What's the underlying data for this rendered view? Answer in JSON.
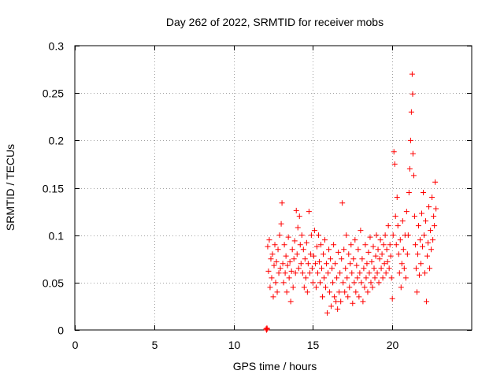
{
  "chart_data": {
    "type": "scatter",
    "title": "Day 262 of 2022, SRMTID for receiver mobs",
    "xlabel": "GPS time / hours",
    "ylabel": "SRMTID / TECUs",
    "xlim": [
      0,
      25
    ],
    "ylim": [
      0,
      0.3
    ],
    "xticks": [
      0,
      5,
      10,
      15,
      20
    ],
    "yticks": [
      0,
      0.05,
      0.1,
      0.15,
      0.2,
      0.25,
      0.3
    ],
    "xtick_labels": [
      "0",
      "5",
      "10",
      "15",
      "20"
    ],
    "ytick_labels": [
      "0",
      "0.05",
      "0.1",
      "0.15",
      "0.2",
      "0.25",
      "0.3"
    ],
    "grid": true,
    "marker": "+",
    "marker_color": "#ff0000",
    "series": [
      {
        "name": "SRMTID",
        "points": [
          [
            12.05,
            0.001
          ],
          [
            12.08,
            0.0
          ],
          [
            12.1,
            0.002
          ],
          [
            12.12,
            0.001
          ],
          [
            12.15,
            0.088
          ],
          [
            12.2,
            0.062
          ],
          [
            12.25,
            0.095
          ],
          [
            12.3,
            0.045
          ],
          [
            12.35,
            0.075
          ],
          [
            12.4,
            0.055
          ],
          [
            12.45,
            0.08
          ],
          [
            12.5,
            0.035
          ],
          [
            12.55,
            0.068
          ],
          [
            12.6,
            0.09
          ],
          [
            12.65,
            0.05
          ],
          [
            12.7,
            0.072
          ],
          [
            12.75,
            0.04
          ],
          [
            12.8,
            0.085
          ],
          [
            12.85,
            0.06
          ],
          [
            12.9,
            0.1
          ],
          [
            12.95,
            0.065
          ],
          [
            13.0,
            0.112
          ],
          [
            13.05,
            0.134
          ],
          [
            13.1,
            0.07
          ],
          [
            13.15,
            0.05
          ],
          [
            13.2,
            0.09
          ],
          [
            13.25,
            0.06
          ],
          [
            13.3,
            0.078
          ],
          [
            13.35,
            0.04
          ],
          [
            13.4,
            0.068
          ],
          [
            13.45,
            0.098
          ],
          [
            13.5,
            0.055
          ],
          [
            13.55,
            0.072
          ],
          [
            13.6,
            0.03
          ],
          [
            13.65,
            0.062
          ],
          [
            13.7,
            0.085
          ],
          [
            13.75,
            0.045
          ],
          [
            13.8,
            0.075
          ],
          [
            13.85,
            0.094
          ],
          [
            13.9,
            0.06
          ],
          [
            13.95,
            0.126
          ],
          [
            14.0,
            0.08
          ],
          [
            14.05,
            0.108
          ],
          [
            14.1,
            0.065
          ],
          [
            14.15,
            0.12
          ],
          [
            14.2,
            0.09
          ],
          [
            14.25,
            0.07
          ],
          [
            14.3,
            0.1
          ],
          [
            14.35,
            0.06
          ],
          [
            14.4,
            0.085
          ],
          [
            14.45,
            0.045
          ],
          [
            14.5,
            0.075
          ],
          [
            14.55,
            0.055
          ],
          [
            14.6,
            0.092
          ],
          [
            14.65,
            0.04
          ],
          [
            14.7,
            0.07
          ],
          [
            14.75,
            0.125
          ],
          [
            14.8,
            0.06
          ],
          [
            14.85,
            0.08
          ],
          [
            14.9,
            0.1
          ],
          [
            14.95,
            0.065
          ],
          [
            15.0,
            0.05
          ],
          [
            15.05,
            0.078
          ],
          [
            15.1,
            0.105
          ],
          [
            15.15,
            0.07
          ],
          [
            15.2,
            0.045
          ],
          [
            15.25,
            0.088
          ],
          [
            15.3,
            0.06
          ],
          [
            15.35,
            0.1
          ],
          [
            15.4,
            0.072
          ],
          [
            15.45,
            0.05
          ],
          [
            15.5,
            0.09
          ],
          [
            15.55,
            0.065
          ],
          [
            15.6,
            0.035
          ],
          [
            15.65,
            0.08
          ],
          [
            15.7,
            0.055
          ],
          [
            15.75,
            0.095
          ],
          [
            15.8,
            0.045
          ],
          [
            15.85,
            0.07
          ],
          [
            15.9,
            0.018
          ],
          [
            15.95,
            0.06
          ],
          [
            16.0,
            0.085
          ],
          [
            16.05,
            0.04
          ],
          [
            16.1,
            0.075
          ],
          [
            16.15,
            0.025
          ],
          [
            16.2,
            0.065
          ],
          [
            16.25,
            0.05
          ],
          [
            16.3,
            0.09
          ],
          [
            16.35,
            0.035
          ],
          [
            16.4,
            0.07
          ],
          [
            16.45,
            0.03
          ],
          [
            16.5,
            0.055
          ],
          [
            16.55,
            0.022
          ],
          [
            16.6,
            0.082
          ],
          [
            16.65,
            0.04
          ],
          [
            16.7,
            0.06
          ],
          [
            16.75,
            0.03
          ],
          [
            16.8,
            0.075
          ],
          [
            16.85,
            0.134
          ],
          [
            16.9,
            0.05
          ],
          [
            16.95,
            0.085
          ],
          [
            17.0,
            0.04
          ],
          [
            17.05,
            0.065
          ],
          [
            17.1,
            0.1
          ],
          [
            17.15,
            0.055
          ],
          [
            17.2,
            0.035
          ],
          [
            17.25,
            0.08
          ],
          [
            17.3,
            0.045
          ],
          [
            17.35,
            0.07
          ],
          [
            17.4,
            0.09
          ],
          [
            17.45,
            0.06
          ],
          [
            17.5,
            0.028
          ],
          [
            17.55,
            0.075
          ],
          [
            17.6,
            0.05
          ],
          [
            17.65,
            0.095
          ],
          [
            17.7,
            0.04
          ],
          [
            17.75,
            0.068
          ],
          [
            17.8,
            0.055
          ],
          [
            17.85,
            0.085
          ],
          [
            17.9,
            0.035
          ],
          [
            17.95,
            0.06
          ],
          [
            18.0,
            0.105
          ],
          [
            18.05,
            0.05
          ],
          [
            18.1,
            0.075
          ],
          [
            18.15,
            0.03
          ],
          [
            18.2,
            0.065
          ],
          [
            18.25,
            0.045
          ],
          [
            18.3,
            0.09
          ],
          [
            18.35,
            0.055
          ],
          [
            18.4,
            0.07
          ],
          [
            18.45,
            0.04
          ],
          [
            18.5,
            0.082
          ],
          [
            18.55,
            0.06
          ],
          [
            18.6,
            0.098
          ],
          [
            18.65,
            0.05
          ],
          [
            18.7,
            0.072
          ],
          [
            18.75,
            0.045
          ],
          [
            18.8,
            0.088
          ],
          [
            18.85,
            0.065
          ],
          [
            18.9,
            0.055
          ],
          [
            18.95,
            0.078
          ],
          [
            19.0,
            0.1
          ],
          [
            19.05,
            0.06
          ],
          [
            19.1,
            0.085
          ],
          [
            19.15,
            0.05
          ],
          [
            19.2,
            0.075
          ],
          [
            19.25,
            0.095
          ],
          [
            19.3,
            0.065
          ],
          [
            19.35,
            0.08
          ],
          [
            19.4,
            0.055
          ],
          [
            19.45,
            0.09
          ],
          [
            19.5,
            0.07
          ],
          [
            19.55,
            0.1
          ],
          [
            19.6,
            0.06
          ],
          [
            19.65,
            0.085
          ],
          [
            19.7,
            0.072
          ],
          [
            19.75,
            0.11
          ],
          [
            19.8,
            0.065
          ],
          [
            19.85,
            0.09
          ],
          [
            19.9,
            0.078
          ],
          [
            19.95,
            0.055
          ],
          [
            20.0,
            0.033
          ],
          [
            20.05,
            0.1
          ],
          [
            20.1,
            0.188
          ],
          [
            20.15,
            0.175
          ],
          [
            20.2,
            0.12
          ],
          [
            20.25,
            0.09
          ],
          [
            20.3,
            0.14
          ],
          [
            20.35,
            0.11
          ],
          [
            20.4,
            0.08
          ],
          [
            20.45,
            0.06
          ],
          [
            20.5,
            0.095
          ],
          [
            20.55,
            0.045
          ],
          [
            20.6,
            0.07
          ],
          [
            20.65,
            0.115
          ],
          [
            20.7,
            0.085
          ],
          [
            20.75,
            0.065
          ],
          [
            20.8,
            0.1
          ],
          [
            20.85,
            0.055
          ],
          [
            20.9,
            0.125
          ],
          [
            20.95,
            0.08
          ],
          [
            21.0,
            0.1
          ],
          [
            21.05,
            0.145
          ],
          [
            21.1,
            0.17
          ],
          [
            21.15,
            0.2
          ],
          [
            21.2,
            0.23
          ],
          [
            21.25,
            0.27
          ],
          [
            21.28,
            0.249
          ],
          [
            21.3,
            0.186
          ],
          [
            21.35,
            0.163
          ],
          [
            21.4,
            0.12
          ],
          [
            21.45,
            0.09
          ],
          [
            21.5,
            0.065
          ],
          [
            21.55,
            0.04
          ],
          [
            21.6,
            0.08
          ],
          [
            21.65,
            0.11
          ],
          [
            21.7,
            0.058
          ],
          [
            21.75,
            0.095
          ],
          [
            21.8,
            0.07
          ],
          [
            21.85,
            0.123
          ],
          [
            21.9,
            0.088
          ],
          [
            21.95,
            0.145
          ],
          [
            22.0,
            0.1
          ],
          [
            22.05,
            0.06
          ],
          [
            22.1,
            0.115
          ],
          [
            22.15,
            0.03
          ],
          [
            22.2,
            0.078
          ],
          [
            22.25,
            0.092
          ],
          [
            22.3,
            0.13
          ],
          [
            22.35,
            0.065
          ],
          [
            22.4,
            0.105
          ],
          [
            22.45,
            0.085
          ],
          [
            22.5,
            0.14
          ],
          [
            22.55,
            0.095
          ],
          [
            22.6,
            0.12
          ],
          [
            22.65,
            0.11
          ],
          [
            22.7,
            0.156
          ],
          [
            22.75,
            0.128
          ]
        ]
      }
    ]
  }
}
